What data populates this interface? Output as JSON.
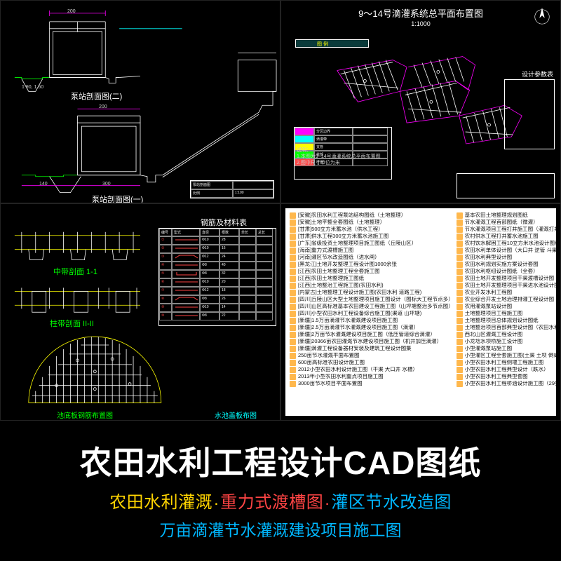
{
  "panels": {
    "tl": {
      "labels": [
        "泵站剖面图(二)",
        "泵站剖面图(一)"
      ],
      "dims": [
        "50",
        "140",
        "200",
        "200",
        "300",
        "55",
        "90"
      ],
      "scale": "1:100"
    },
    "tr": {
      "title": "9～14号滴灌系统总平面布置图",
      "scale": "1:1000",
      "legend_title": "设计参数表"
    },
    "bl": {
      "labels": [
        "中带剖面  1-1",
        "柱带剖面  II-II",
        "池底板钢筋布置图",
        "水池盖板布图"
      ],
      "table_title": "钢筋及材料表"
    }
  },
  "files_left": [
    "[安徽]农田水利工程泵站结构图纸（土地整理）",
    "[安徽]土地平整全套图纸（土地整理）",
    "[甘肃]500立方米蓄水池（供水工程）",
    "[甘肃]供水工程300立方米蓄水池施工图",
    "[广东]省级投资土地整理项目施工图纸（丘陵山区）",
    "[海南]重力式渡槽施工图",
    "[河南]灌区节水改造图纸（进水闸）",
    "[黑龙江]土地开发整理工程设计图1000余张",
    "[江西]农田土地整理工程全套施工图",
    "[江西]农田土地整理施工图纸",
    "[江西]土地整治工程施工图(农田水利)",
    "[内蒙古]土地整理工程设计施工图(农田水利 道路工程)",
    "[四川]丘陵山区大型土地整理项目施工图设计（图标大工程节点多）",
    "[四川]山区高标准基本农田建设工程施工图（山坪塘整治多节点图）",
    "[四川]小型农田水利工程设备综合施工图(渠道 山坪塘)",
    "[新疆]1.5万亩滴灌节水灌溉建设项目施工图",
    "[新疆]2.5万亩滴灌节水灌溉建设项目施工图（滴灌）",
    "[新疆]2万亩节水灌溉建设项目施工图（低压管道综合滴灌）",
    "[新疆]20366亩农田灌溉节水建设项目施工图（机井加压滴灌）",
    "[新疆]滴灌工程设备器材安装及建筑工程设计图集",
    "250亩节水灌溉平面布置图",
    "600亩高标准农田设计施工图",
    "2012小型农田水利设计施工图（干渠 大口井 水槽）",
    "2013年小型农田水利重点项目施工图",
    "3000亩节水项目平面布置图"
  ],
  "files_right": [
    "基本农田土地整理规划图纸",
    "节水灌溉工程首部图纸（微灌）",
    "节水灌溉项目工程打井施工图（灌溉打井微灌）",
    "农村供水工程打井蓄水池施工图",
    "农村饮水解困工程10立方米水池设计图纸",
    "农田水利单体设计图（大口井 逆管 斗渠 ）",
    "农田水利典型设计图",
    "农田水利规划实施方案设计套图",
    "农田水利枢纽设计图纸（全套）",
    "农田土地开发整理项目干渠渡槽设计图",
    "农田土地开发整理项目干渠进水池设计图",
    "农业开发水利工程图",
    "农业综合开发土地治理排灌工程设计图",
    "农用灌溉泵站设计图",
    "土地整理项目工程施工图",
    "土地整理项目总体规划设计图纸",
    "土地整治项目首部典型设计图（农田水利 生产道）",
    "西北山区灌溉工程设计图",
    "小龙埝水坝桥施工设计图",
    "小型灌溉泵站施工图",
    "小型灌区工程全套施工图(土渠 土坝 倒虹吸)",
    "小型农田水利工程侧堰工程施工图",
    "小型农田水利工程典型设计（跌水）",
    "小型农田水利工程典型套图",
    "小型农田水利工程桥涵设计施工图（29张）"
  ],
  "footer": {
    "title": "农田水利工程设计CAD图纸",
    "sub1a": "农田水利灌溉",
    "sub1b": "重力式渡槽图",
    "sub1c": "灌区节水改造图",
    "dot": ".",
    "sub2": "万亩滴灌节水灌溉建设项目施工图"
  },
  "colors": {
    "bg": "#000000",
    "white": "#ffffff",
    "cyan": "#00ffff",
    "green": "#00ff00",
    "yellow": "#ffff00",
    "magenta": "#ff00ff",
    "red": "#ff4444",
    "title_yellow": "#ffd400",
    "title_blue": "#00b7ff",
    "folder": "#ffb84d"
  }
}
